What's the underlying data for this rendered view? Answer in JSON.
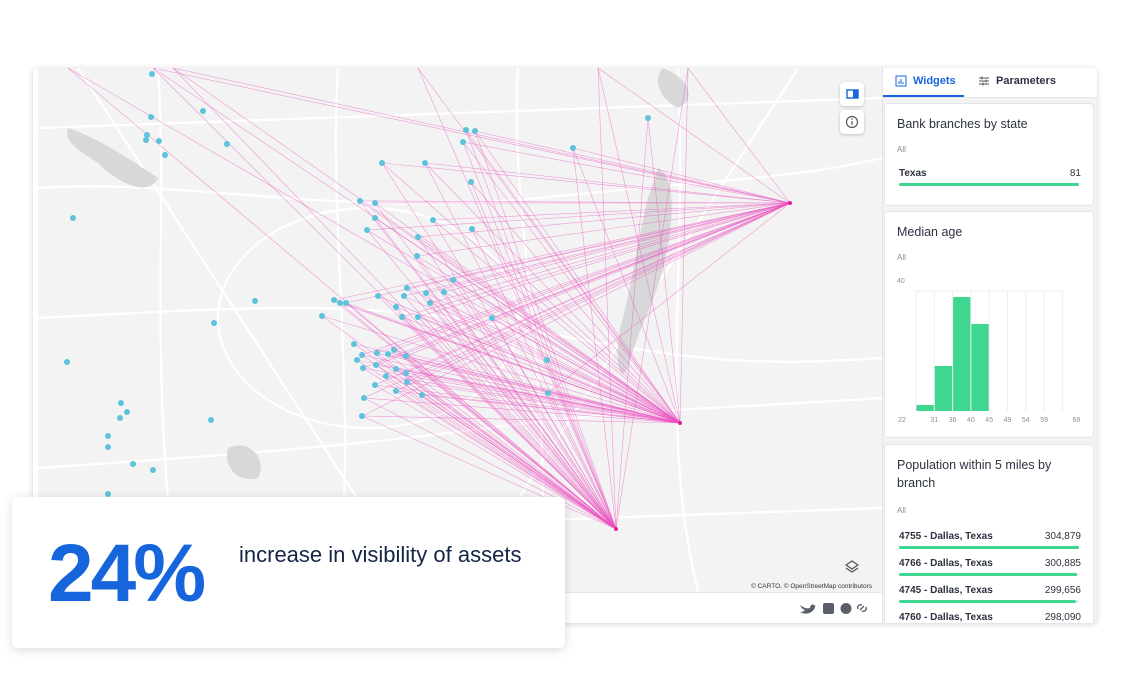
{
  "tabs": [
    "Widgets",
    "Parameters"
  ],
  "attribution": "© CARTO, © OpenStreetMap contributors",
  "stat": {
    "value": "24%",
    "text": "increase in visibility of assets"
  },
  "widgets": [
    {
      "title": "Bank branches by state",
      "filter": "All",
      "rows": [
        {
          "label": "Texas",
          "value": 81
        }
      ]
    },
    {
      "title": "Median age",
      "filter": "All",
      "bins": [
        22,
        31,
        36,
        40,
        45,
        49,
        54,
        59,
        68
      ],
      "values": [
        2,
        15,
        38,
        29,
        0,
        0,
        0,
        0
      ],
      "ylim": [
        0,
        40
      ],
      "yticks": [
        40
      ],
      "color": "#3fd68f"
    },
    {
      "title": "Population within 5 miles by branch",
      "filter": "All",
      "rows": [
        {
          "label": "4755 - Dallas, Texas",
          "value": 304879,
          "value_label": "304,879"
        },
        {
          "label": "4766 - Dallas, Texas",
          "value": 300885,
          "value_label": "300,885"
        },
        {
          "label": "4745 - Dallas, Texas",
          "value": 299656,
          "value_label": "299,656"
        },
        {
          "label": "4760 - Dallas, Texas",
          "value": 298090,
          "value_label": "298,090"
        }
      ]
    }
  ]
}
